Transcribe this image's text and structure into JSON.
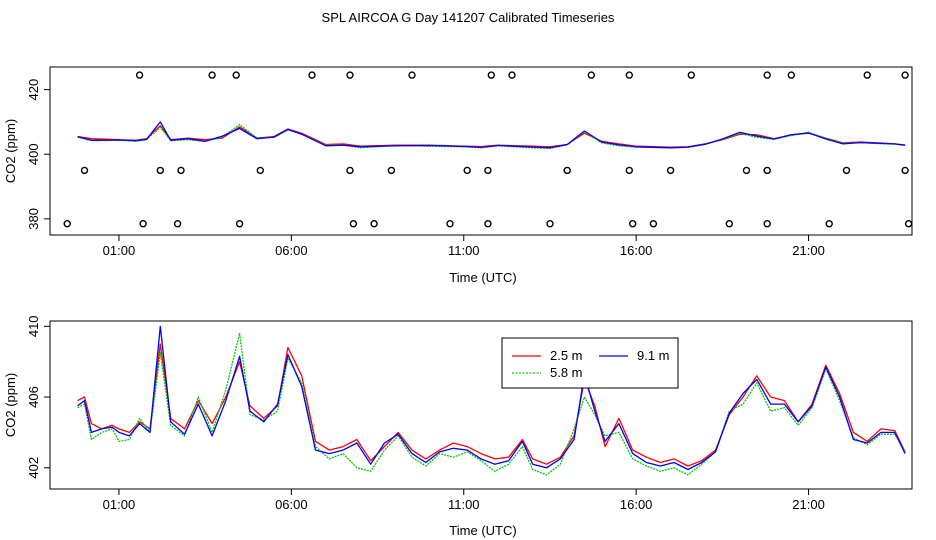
{
  "title": "SPL AIRCOA G  Day 141207  Calibrated Timeseries",
  "colors": {
    "red": "#ff0000",
    "green": "#00cc00",
    "blue": "#0000ff",
    "axis": "#000000"
  },
  "chart_data": [
    {
      "type": "line",
      "xlabel": "Time (UTC)",
      "ylabel": "CO2 (ppm)",
      "x_ticks": [
        "01:00",
        "06:00",
        "11:00",
        "16:00",
        "21:00"
      ],
      "y_ticks": [
        "380",
        "400",
        "420"
      ],
      "xlim_hours": [
        -1.0,
        24.0
      ],
      "ylim": [
        375,
        427
      ],
      "series": [
        {
          "color": "red",
          "x": [
            -0.2,
            0.2,
            1.0,
            1.5,
            1.8,
            2.2,
            2.5,
            3.0,
            3.5,
            4.0,
            4.5,
            5.0,
            5.5,
            5.9,
            6.3,
            7.0,
            7.5,
            8.0,
            9.0,
            10.0,
            11.0,
            11.5,
            12.0,
            13.0,
            13.5,
            14.0,
            14.5,
            15.0,
            15.5,
            16.0,
            17.0,
            17.5,
            18.0,
            18.5,
            19.0,
            19.5,
            20.0,
            20.5,
            21.0,
            21.5,
            22.0,
            22.5,
            23.0,
            23.5,
            23.8
          ],
          "values": [
            405.5,
            404.8,
            404.5,
            404.3,
            404.8,
            408.8,
            404.5,
            405.0,
            404.5,
            405.0,
            408.5,
            405.0,
            405.5,
            407.8,
            406.5,
            403.0,
            403.2,
            402.5,
            402.8,
            402.8,
            402.5,
            402.4,
            402.8,
            402.5,
            402.3,
            403.0,
            406.5,
            404.0,
            403.2,
            402.5,
            402.2,
            402.3,
            403.2,
            404.5,
            406.2,
            406.0,
            404.8,
            406.0,
            406.5,
            405.0,
            403.5,
            403.8,
            403.5,
            403.2,
            402.8
          ]
        },
        {
          "color": "green",
          "x": [
            -0.2,
            0.2,
            1.0,
            1.5,
            1.8,
            2.2,
            2.5,
            3.0,
            3.5,
            4.0,
            4.5,
            5.0,
            5.5,
            5.9,
            6.3,
            7.0,
            7.5,
            8.0,
            9.0,
            10.0,
            11.0,
            11.5,
            12.0,
            13.0,
            13.5,
            14.0,
            14.5,
            15.0,
            15.5,
            16.0,
            17.0,
            17.5,
            18.0,
            18.5,
            19.0,
            19.5,
            20.0,
            20.5,
            21.0,
            21.5,
            22.0,
            22.5,
            23.0,
            23.5,
            23.8
          ],
          "values": [
            405.3,
            404.2,
            404.3,
            404.0,
            404.5,
            408.3,
            404.2,
            404.5,
            404.0,
            405.3,
            409.2,
            405.0,
            405.2,
            407.5,
            406.2,
            402.8,
            402.9,
            402.0,
            402.7,
            402.5,
            402.3,
            402.0,
            402.6,
            402.0,
            401.8,
            402.9,
            407.0,
            403.5,
            402.6,
            402.2,
            402.0,
            402.1,
            403.0,
            404.6,
            406.5,
            405.2,
            404.6,
            405.8,
            406.8,
            404.9,
            403.4,
            403.6,
            403.3,
            403.1,
            402.9
          ]
        },
        {
          "color": "blue",
          "x": [
            -0.2,
            0.2,
            1.0,
            1.5,
            1.8,
            2.2,
            2.5,
            3.0,
            3.5,
            4.0,
            4.5,
            5.0,
            5.5,
            5.9,
            6.3,
            7.0,
            7.5,
            8.0,
            9.0,
            10.0,
            11.0,
            11.5,
            12.0,
            13.0,
            13.5,
            14.0,
            14.5,
            15.0,
            15.5,
            16.0,
            17.0,
            17.5,
            18.0,
            18.5,
            19.0,
            19.5,
            20.0,
            20.5,
            21.0,
            21.5,
            22.0,
            22.5,
            23.0,
            23.5,
            23.8
          ],
          "values": [
            405.4,
            404.3,
            404.4,
            404.2,
            404.6,
            410.0,
            404.3,
            404.8,
            404.0,
            405.6,
            408.0,
            404.8,
            405.3,
            407.7,
            406.2,
            402.6,
            402.8,
            402.3,
            402.6,
            402.7,
            402.4,
            402.1,
            402.7,
            402.2,
            402.0,
            403.0,
            407.2,
            403.8,
            402.9,
            402.3,
            402.0,
            402.2,
            403.1,
            404.7,
            406.8,
            405.6,
            404.7,
            406.0,
            406.6,
            404.7,
            403.2,
            403.6,
            403.4,
            403.2,
            402.8
          ]
        }
      ],
      "calibration_points": {
        "top": [
          1.6,
          3.7,
          4.4,
          6.6,
          7.7,
          9.5,
          11.8,
          12.4,
          14.7,
          15.8,
          17.6,
          19.8,
          20.5,
          22.7,
          23.8
        ],
        "middle": [
          0.0,
          2.2,
          2.8,
          5.1,
          7.7,
          8.9,
          11.1,
          11.7,
          14.0,
          15.8,
          17.0,
          19.2,
          19.8,
          22.1,
          23.8
        ],
        "bottom": [
          -0.5,
          1.7,
          2.7,
          4.5,
          7.8,
          8.4,
          10.6,
          11.7,
          13.5,
          15.9,
          16.5,
          18.7,
          19.8,
          21.6,
          23.9
        ]
      }
    },
    {
      "type": "line",
      "xlabel": "Time (UTC)",
      "ylabel": "CO2 (ppm)",
      "x_ticks": [
        "01:00",
        "06:00",
        "11:00",
        "16:00",
        "21:00"
      ],
      "y_ticks": [
        "402",
        "406",
        "410"
      ],
      "xlim_hours": [
        -1.0,
        24.0
      ],
      "ylim": [
        400.8,
        410.3
      ],
      "legend": {
        "position": "top-center",
        "entries": [
          {
            "label": "2.5 m",
            "color": "red"
          },
          {
            "label": "9.1 m",
            "color": "blue"
          },
          {
            "label": "5.8 m",
            "color": "green"
          }
        ]
      },
      "series": [
        {
          "color": "red",
          "x": [
            -0.2,
            0.0,
            0.2,
            0.5,
            0.8,
            1.0,
            1.3,
            1.6,
            1.9,
            2.2,
            2.5,
            2.9,
            3.3,
            3.7,
            4.1,
            4.5,
            4.8,
            5.2,
            5.6,
            5.9,
            6.3,
            6.7,
            7.1,
            7.5,
            7.9,
            8.3,
            8.7,
            9.1,
            9.5,
            9.9,
            10.3,
            10.7,
            11.1,
            11.5,
            11.9,
            12.3,
            12.7,
            13.0,
            13.4,
            13.8,
            14.2,
            14.5,
            14.8,
            15.1,
            15.5,
            15.9,
            16.3,
            16.7,
            17.1,
            17.5,
            17.9,
            18.3,
            18.7,
            19.1,
            19.5,
            19.9,
            20.3,
            20.7,
            21.1,
            21.5,
            21.9,
            22.3,
            22.7,
            23.1,
            23.5,
            23.8
          ],
          "values": [
            405.8,
            406.0,
            404.5,
            404.2,
            404.4,
            404.2,
            404.0,
            404.6,
            404.2,
            409.0,
            404.8,
            404.2,
            405.8,
            404.5,
            406.0,
            408.0,
            405.5,
            404.8,
            405.5,
            408.8,
            407.2,
            403.5,
            403.0,
            403.2,
            403.6,
            402.4,
            403.2,
            404.0,
            403.0,
            402.5,
            403.0,
            403.4,
            403.2,
            402.8,
            402.5,
            402.6,
            403.6,
            402.5,
            402.2,
            402.6,
            403.8,
            407.0,
            405.5,
            403.2,
            404.8,
            403.0,
            402.6,
            402.3,
            402.5,
            402.1,
            402.4,
            403.0,
            405.0,
            406.0,
            407.2,
            406.0,
            405.8,
            404.6,
            405.6,
            407.8,
            406.2,
            404.0,
            403.5,
            404.2,
            404.1,
            402.9
          ]
        },
        {
          "color": "green",
          "x": [
            -0.2,
            0.0,
            0.2,
            0.5,
            0.8,
            1.0,
            1.3,
            1.6,
            1.9,
            2.2,
            2.5,
            2.9,
            3.3,
            3.7,
            4.1,
            4.5,
            4.8,
            5.2,
            5.6,
            5.9,
            6.3,
            6.7,
            7.1,
            7.5,
            7.9,
            8.3,
            8.7,
            9.1,
            9.5,
            9.9,
            10.3,
            10.7,
            11.1,
            11.5,
            11.9,
            12.3,
            12.7,
            13.0,
            13.4,
            13.8,
            14.2,
            14.5,
            14.8,
            15.1,
            15.5,
            15.9,
            16.3,
            16.7,
            17.1,
            17.5,
            17.9,
            18.3,
            18.7,
            19.1,
            19.5,
            19.9,
            20.3,
            20.7,
            21.1,
            21.5,
            21.9,
            22.3,
            22.7,
            23.1,
            23.5,
            23.8
          ],
          "values": [
            405.4,
            405.6,
            403.6,
            404.0,
            404.2,
            403.5,
            403.6,
            404.8,
            404.0,
            408.5,
            404.4,
            403.8,
            406.0,
            404.0,
            406.4,
            409.6,
            405.0,
            404.7,
            405.2,
            408.2,
            406.8,
            403.2,
            402.5,
            402.8,
            402.0,
            401.8,
            403.0,
            403.8,
            402.6,
            402.1,
            402.8,
            402.6,
            402.9,
            402.4,
            401.8,
            402.2,
            403.2,
            401.9,
            401.6,
            402.2,
            404.2,
            406.0,
            405.0,
            403.8,
            404.0,
            402.5,
            402.1,
            401.8,
            402.0,
            401.6,
            402.2,
            402.9,
            405.2,
            405.6,
            406.8,
            405.2,
            405.4,
            404.4,
            405.4,
            407.6,
            405.8,
            403.7,
            403.3,
            403.9,
            403.9,
            402.9
          ]
        },
        {
          "color": "blue",
          "x": [
            -0.2,
            0.0,
            0.2,
            0.5,
            0.8,
            1.0,
            1.3,
            1.6,
            1.9,
            2.2,
            2.5,
            2.9,
            3.3,
            3.7,
            4.1,
            4.5,
            4.8,
            5.2,
            5.6,
            5.9,
            6.3,
            6.7,
            7.1,
            7.5,
            7.9,
            8.3,
            8.7,
            9.1,
            9.5,
            9.9,
            10.3,
            10.7,
            11.1,
            11.5,
            11.9,
            12.3,
            12.7,
            13.0,
            13.4,
            13.8,
            14.2,
            14.5,
            14.8,
            15.1,
            15.5,
            15.9,
            16.3,
            16.7,
            17.1,
            17.5,
            17.9,
            18.3,
            18.7,
            19.1,
            19.5,
            19.9,
            20.3,
            20.7,
            21.1,
            21.5,
            21.9,
            22.3,
            22.7,
            23.1,
            23.5,
            23.8
          ],
          "values": [
            405.5,
            405.8,
            404.0,
            404.2,
            404.3,
            404.0,
            403.8,
            404.5,
            404.0,
            410.0,
            404.6,
            403.9,
            405.6,
            403.8,
            405.8,
            408.3,
            405.2,
            404.6,
            405.6,
            408.4,
            406.6,
            403.0,
            402.8,
            403.0,
            403.4,
            402.2,
            403.4,
            403.9,
            402.8,
            402.3,
            402.9,
            403.1,
            403.0,
            402.5,
            402.2,
            402.4,
            403.5,
            402.2,
            402.0,
            402.5,
            403.6,
            407.3,
            405.2,
            403.5,
            404.5,
            402.8,
            402.3,
            402.1,
            402.3,
            401.9,
            402.3,
            402.9,
            405.1,
            406.2,
            407.0,
            405.6,
            405.6,
            404.6,
            405.5,
            407.7,
            406.0,
            403.6,
            403.4,
            404.0,
            404.0,
            402.8
          ]
        }
      ]
    }
  ]
}
